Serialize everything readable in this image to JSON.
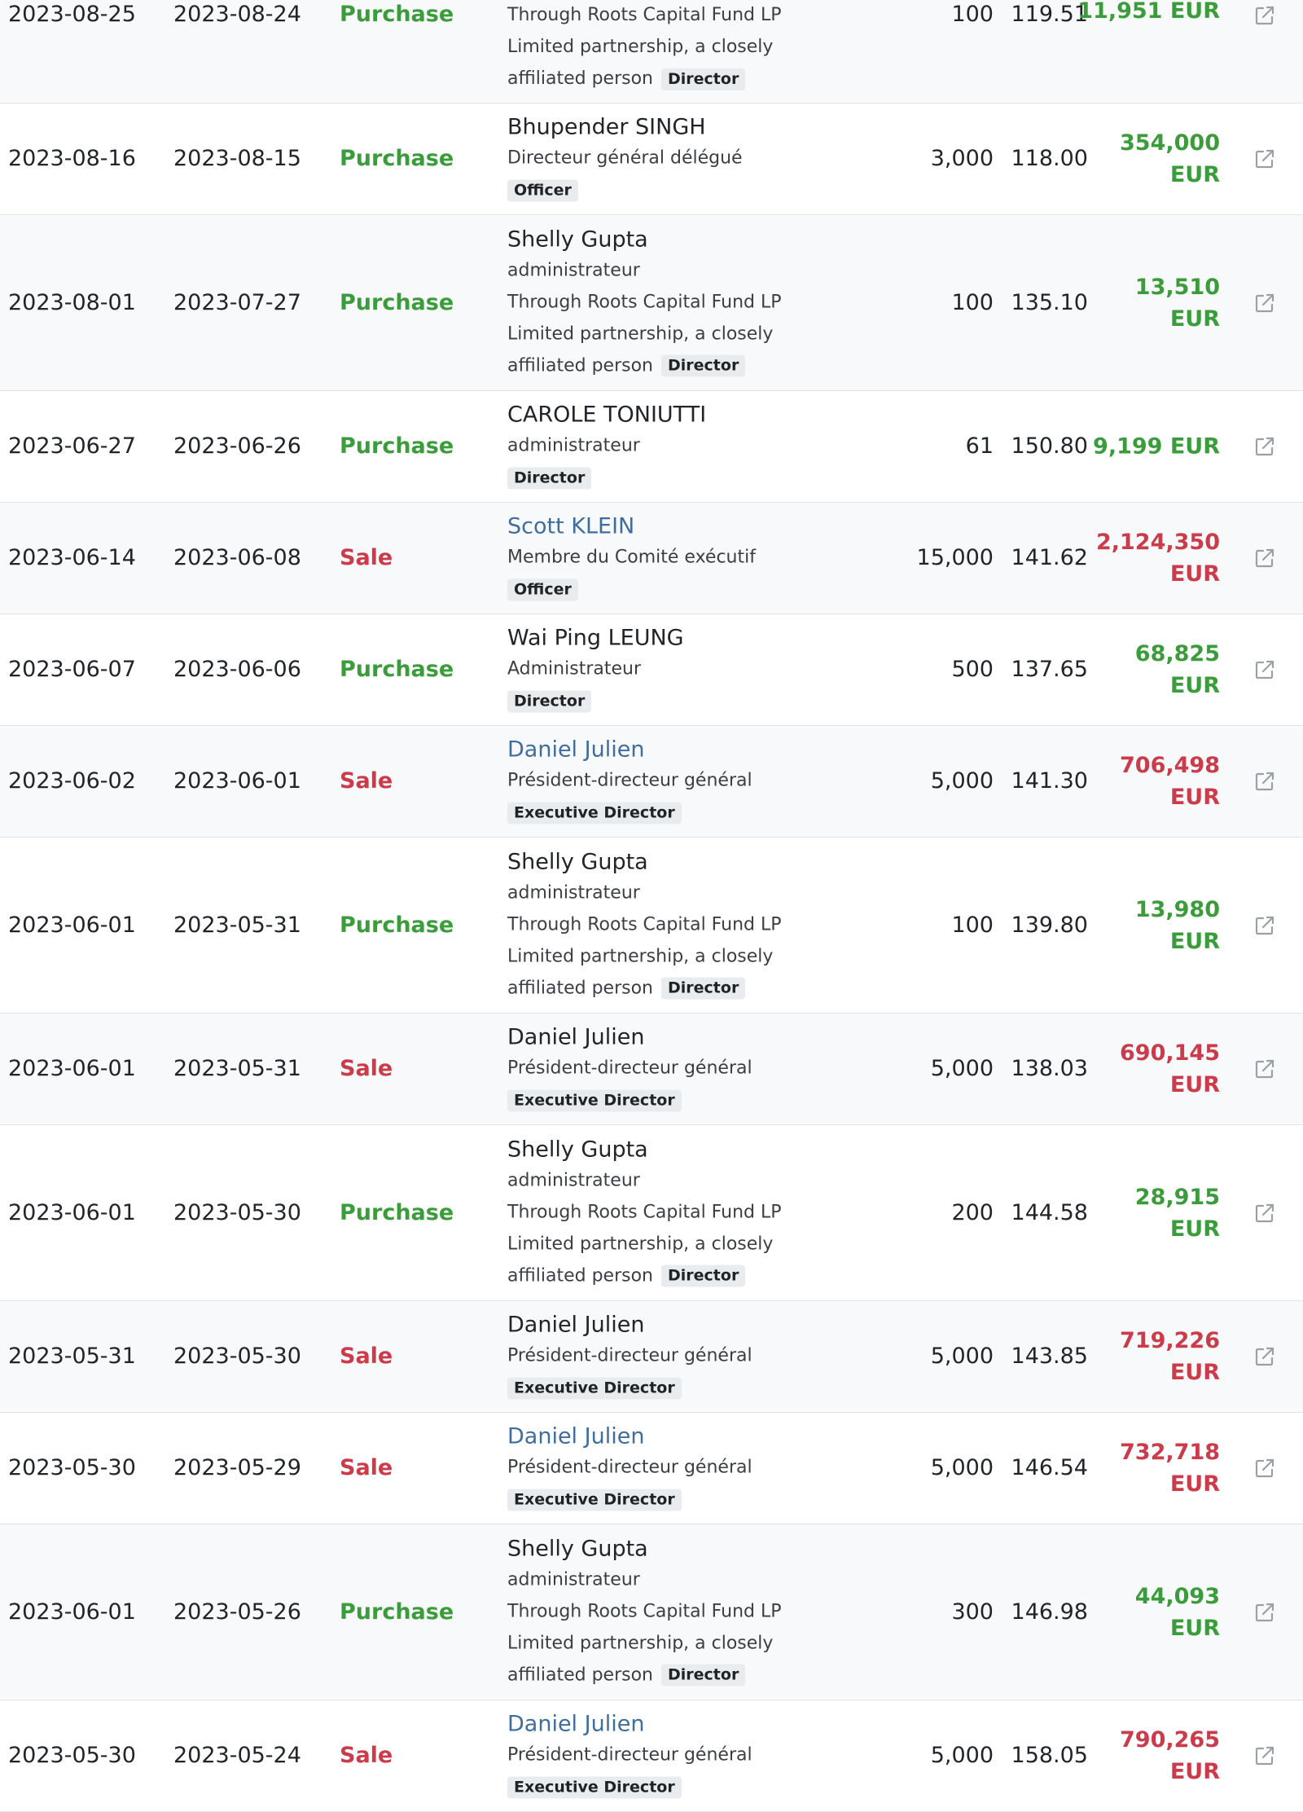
{
  "rows": [
    {
      "filed": "2023-08-25",
      "trade": "2023-08-24",
      "type": "Purchase",
      "kind": "purchase",
      "name": "",
      "name_link": false,
      "lines": [
        "Through Roots Capital Fund LP",
        "Limited partnership, a closely",
        "affiliated person"
      ],
      "badge": "Director",
      "badge_inline": true,
      "qty": "100",
      "price": "119.51",
      "value1": "11,951 EUR",
      "value2": "",
      "top_clip": true
    },
    {
      "filed": "2023-08-16",
      "trade": "2023-08-15",
      "type": "Purchase",
      "kind": "purchase",
      "name": "Bhupender SINGH",
      "name_link": false,
      "lines": [
        "Directeur général délégué"
      ],
      "badge": "Officer",
      "badge_inline": false,
      "qty": "3,000",
      "price": "118.00",
      "value1": "354,000",
      "value2": "EUR"
    },
    {
      "filed": "2023-08-01",
      "trade": "2023-07-27",
      "type": "Purchase",
      "kind": "purchase",
      "name": "Shelly Gupta",
      "name_link": false,
      "lines": [
        "administrateur",
        "Through Roots Capital Fund LP",
        "Limited partnership, a closely",
        "affiliated person"
      ],
      "badge": "Director",
      "badge_inline": true,
      "qty": "100",
      "price": "135.10",
      "value1": "13,510",
      "value2": "EUR"
    },
    {
      "filed": "2023-06-27",
      "trade": "2023-06-26",
      "type": "Purchase",
      "kind": "purchase",
      "name": "CAROLE TONIUTTI",
      "name_link": false,
      "lines": [
        "administrateur"
      ],
      "badge": "Director",
      "badge_inline": false,
      "qty": "61",
      "price": "150.80",
      "value1": "9,199 EUR",
      "value2": ""
    },
    {
      "filed": "2023-06-14",
      "trade": "2023-06-08",
      "type": "Sale",
      "kind": "sale",
      "name": "Scott KLEIN",
      "name_link": true,
      "lines": [
        "Membre du Comité exécutif"
      ],
      "badge": "Officer",
      "badge_inline": false,
      "qty": "15,000",
      "price": "141.62",
      "value1": "2,124,350",
      "value2": "EUR"
    },
    {
      "filed": "2023-06-07",
      "trade": "2023-06-06",
      "type": "Purchase",
      "kind": "purchase",
      "name": "Wai Ping LEUNG",
      "name_link": false,
      "lines": [
        "Administrateur"
      ],
      "badge": "Director",
      "badge_inline": false,
      "qty": "500",
      "price": "137.65",
      "value1": "68,825",
      "value2": "EUR"
    },
    {
      "filed": "2023-06-02",
      "trade": "2023-06-01",
      "type": "Sale",
      "kind": "sale",
      "name": "Daniel Julien",
      "name_link": true,
      "lines": [
        "Président-directeur général"
      ],
      "badge": "Executive Director",
      "badge_inline": false,
      "qty": "5,000",
      "price": "141.30",
      "value1": "706,498",
      "value2": "EUR"
    },
    {
      "filed": "2023-06-01",
      "trade": "2023-05-31",
      "type": "Purchase",
      "kind": "purchase",
      "name": "Shelly Gupta",
      "name_link": false,
      "lines": [
        "administrateur",
        "Through Roots Capital Fund LP",
        "Limited partnership, a closely",
        "affiliated person"
      ],
      "badge": "Director",
      "badge_inline": true,
      "qty": "100",
      "price": "139.80",
      "value1": "13,980",
      "value2": "EUR"
    },
    {
      "filed": "2023-06-01",
      "trade": "2023-05-31",
      "type": "Sale",
      "kind": "sale",
      "name": "Daniel Julien",
      "name_link": false,
      "lines": [
        "Président-directeur général"
      ],
      "badge": "Executive Director",
      "badge_inline": false,
      "qty": "5,000",
      "price": "138.03",
      "value1": "690,145",
      "value2": "EUR"
    },
    {
      "filed": "2023-06-01",
      "trade": "2023-05-30",
      "type": "Purchase",
      "kind": "purchase",
      "name": "Shelly Gupta",
      "name_link": false,
      "lines": [
        "administrateur",
        "Through Roots Capital Fund LP",
        "Limited partnership, a closely",
        "affiliated person"
      ],
      "badge": "Director",
      "badge_inline": true,
      "qty": "200",
      "price": "144.58",
      "value1": "28,915",
      "value2": "EUR"
    },
    {
      "filed": "2023-05-31",
      "trade": "2023-05-30",
      "type": "Sale",
      "kind": "sale",
      "name": "Daniel Julien",
      "name_link": false,
      "lines": [
        "Président-directeur général"
      ],
      "badge": "Executive Director",
      "badge_inline": false,
      "qty": "5,000",
      "price": "143.85",
      "value1": "719,226",
      "value2": "EUR"
    },
    {
      "filed": "2023-05-30",
      "trade": "2023-05-29",
      "type": "Sale",
      "kind": "sale",
      "name": "Daniel Julien",
      "name_link": true,
      "lines": [
        "Président-directeur général"
      ],
      "badge": "Executive Director",
      "badge_inline": false,
      "qty": "5,000",
      "price": "146.54",
      "value1": "732,718",
      "value2": "EUR"
    },
    {
      "filed": "2023-06-01",
      "trade": "2023-05-26",
      "type": "Purchase",
      "kind": "purchase",
      "name": "Shelly Gupta",
      "name_link": false,
      "lines": [
        "administrateur",
        "Through Roots Capital Fund LP",
        "Limited partnership, a closely",
        "affiliated person"
      ],
      "badge": "Director",
      "badge_inline": true,
      "qty": "300",
      "price": "146.98",
      "value1": "44,093",
      "value2": "EUR"
    },
    {
      "filed": "2023-05-30",
      "trade": "2023-05-24",
      "type": "Sale",
      "kind": "sale",
      "name": "Daniel Julien",
      "name_link": true,
      "lines": [
        "Président-directeur général"
      ],
      "badge": "Executive Director",
      "badge_inline": false,
      "qty": "5,000",
      "price": "158.05",
      "value1": "790,265",
      "value2": "EUR"
    }
  ],
  "icons": {
    "row_link": "external-link-icon"
  },
  "colors": {
    "purchase": "#3b9c3b",
    "sale": "#cc3b4a",
    "link": "#3f6e9e",
    "badge_bg": "#e9ecef",
    "row_alt": "#f8f9fa"
  }
}
